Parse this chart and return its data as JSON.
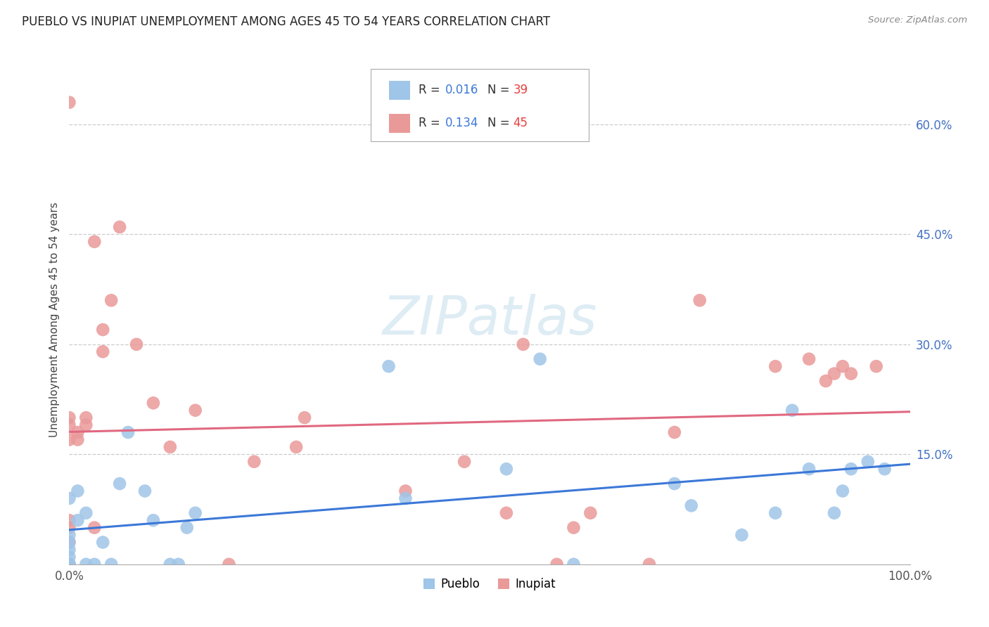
{
  "title": "PUEBLO VS INUPIAT UNEMPLOYMENT AMONG AGES 45 TO 54 YEARS CORRELATION CHART",
  "source": "Source: ZipAtlas.com",
  "ylabel": "Unemployment Among Ages 45 to 54 years",
  "xlim": [
    0,
    1.0
  ],
  "ylim": [
    0,
    0.667
  ],
  "ytick_right_vals": [
    0.15,
    0.3,
    0.45,
    0.6
  ],
  "ytick_right_labels": [
    "15.0%",
    "30.0%",
    "45.0%",
    "60.0%"
  ],
  "pueblo_color": "#9fc5e8",
  "inupiat_color": "#ea9999",
  "pueblo_line_color": "#3c78d8",
  "inupiat_line_color": "#e06880",
  "watermark_color": "#d0e4f0",
  "pueblo_x": [
    0.0,
    0.0,
    0.0,
    0.0,
    0.0,
    0.0,
    0.0,
    0.0,
    0.01,
    0.01,
    0.02,
    0.02,
    0.03,
    0.04,
    0.05,
    0.06,
    0.07,
    0.09,
    0.1,
    0.12,
    0.13,
    0.14,
    0.15,
    0.38,
    0.4,
    0.52,
    0.56,
    0.6,
    0.72,
    0.74,
    0.8,
    0.84,
    0.86,
    0.88,
    0.91,
    0.92,
    0.93,
    0.95,
    0.97
  ],
  "pueblo_y": [
    0.0,
    0.0,
    0.0,
    0.01,
    0.02,
    0.03,
    0.04,
    0.09,
    0.06,
    0.1,
    0.0,
    0.07,
    0.0,
    0.03,
    0.0,
    0.11,
    0.18,
    0.1,
    0.06,
    0.0,
    0.0,
    0.05,
    0.07,
    0.27,
    0.09,
    0.13,
    0.28,
    0.0,
    0.11,
    0.08,
    0.04,
    0.07,
    0.21,
    0.13,
    0.07,
    0.1,
    0.13,
    0.14,
    0.13
  ],
  "inupiat_x": [
    0.0,
    0.0,
    0.0,
    0.0,
    0.0,
    0.0,
    0.0,
    0.0,
    0.0,
    0.0,
    0.01,
    0.01,
    0.02,
    0.02,
    0.03,
    0.03,
    0.04,
    0.04,
    0.05,
    0.06,
    0.08,
    0.1,
    0.12,
    0.15,
    0.19,
    0.22,
    0.27,
    0.28,
    0.4,
    0.47,
    0.52,
    0.54,
    0.58,
    0.6,
    0.62,
    0.69,
    0.72,
    0.75,
    0.84,
    0.88,
    0.9,
    0.91,
    0.92,
    0.93,
    0.96
  ],
  "inupiat_y": [
    0.0,
    0.0,
    0.0,
    0.03,
    0.05,
    0.06,
    0.17,
    0.19,
    0.2,
    0.63,
    0.17,
    0.18,
    0.19,
    0.2,
    0.05,
    0.44,
    0.29,
    0.32,
    0.36,
    0.46,
    0.3,
    0.22,
    0.16,
    0.21,
    0.0,
    0.14,
    0.16,
    0.2,
    0.1,
    0.14,
    0.07,
    0.3,
    0.0,
    0.05,
    0.07,
    0.0,
    0.18,
    0.36,
    0.27,
    0.28,
    0.25,
    0.26,
    0.27,
    0.26,
    0.27
  ],
  "pueblo_trend_x": [
    0.0,
    1.0
  ],
  "pueblo_trend_y": [
    0.095,
    0.11
  ],
  "inupiat_trend_x": [
    0.0,
    1.0
  ],
  "inupiat_trend_y": [
    0.195,
    0.265
  ]
}
